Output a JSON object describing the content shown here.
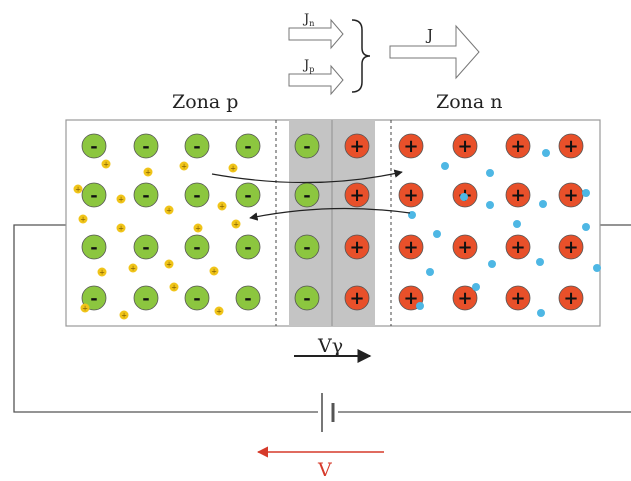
{
  "labels": {
    "zona_p": "Zona p",
    "zona_n": "Zona n",
    "j_n_main": "J",
    "j_n_sub": "n",
    "j_p_main": "J",
    "j_p_sub": "p",
    "j_total": "J",
    "v_gamma": "Vγ",
    "v": "V"
  },
  "glyphs": {
    "minus": "-",
    "plus": "+"
  },
  "colors": {
    "acceptor_ion": "#8cc63f",
    "donor_ion": "#e8502a",
    "hole": "#f0c419",
    "electron": "#4eb7e4",
    "depletion_region": "#c4c4c4",
    "voltage_arrow": "#d63a2a",
    "wire": "#555555"
  }
}
